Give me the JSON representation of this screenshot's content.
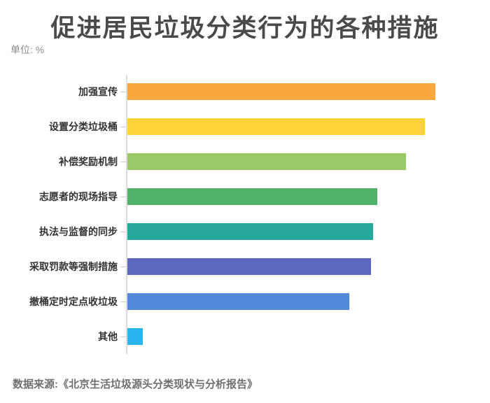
{
  "title": "促进居民垃圾分类行为的各种措施",
  "unit_label": "单位: %",
  "source": "数据来源:《北京生活垃圾源头分类现状与分析报告》",
  "chart_data": {
    "type": "bar",
    "orientation": "horizontal",
    "title": "促进居民垃圾分类行为的各种措施",
    "unit": "%",
    "categories": [
      "加强宣传",
      "设置分类垃圾桶",
      "补偿奖励机制",
      "志愿者的现场指导",
      "执法与监督的同步",
      "采取罚款等强制措施",
      "撤桶定时定点收垃圾",
      "其他"
    ],
    "values": [
      85.0,
      82.1,
      76.9,
      69.0,
      67.7,
      67.1,
      61.2,
      4.2
    ],
    "bar_colors": [
      "#F9A83B",
      "#FDD335",
      "#9BC968",
      "#52B26A",
      "#27A69A",
      "#5C68BD",
      "#5389D8",
      "#29B5EF"
    ],
    "xlabel": "",
    "ylabel": "",
    "xlim": [
      0,
      100
    ],
    "grid": false,
    "legend": false,
    "axis_color": "#dcdcdc",
    "value_labels_shown": false
  }
}
